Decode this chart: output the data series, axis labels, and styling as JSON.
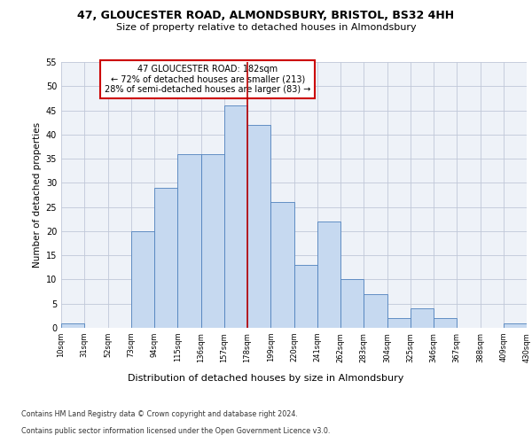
{
  "title1": "47, GLOUCESTER ROAD, ALMONDSBURY, BRISTOL, BS32 4HH",
  "title2": "Size of property relative to detached houses in Almondsbury",
  "xlabel": "Distribution of detached houses by size in Almondsbury",
  "ylabel": "Number of detached properties",
  "bar_edges": [
    10,
    31,
    52,
    73,
    94,
    115,
    136,
    157,
    178,
    199,
    220,
    241,
    262,
    283,
    304,
    325,
    346,
    367,
    388,
    409,
    430
  ],
  "bar_heights": [
    1,
    0,
    0,
    20,
    29,
    36,
    36,
    46,
    42,
    26,
    13,
    22,
    10,
    7,
    2,
    4,
    2,
    0,
    0,
    1
  ],
  "bar_color": "#c6d9f0",
  "bar_edge_color": "#4f81bd",
  "property_line_x": 178,
  "annotation_text": "47 GLOUCESTER ROAD: 182sqm\n← 72% of detached houses are smaller (213)\n28% of semi-detached houses are larger (83) →",
  "annotation_box_color": "#ffffff",
  "annotation_box_edge": "#cc0000",
  "grid_color": "#c0c8d8",
  "background_color": "#eef2f8",
  "ylim": [
    0,
    55
  ],
  "yticks": [
    0,
    5,
    10,
    15,
    20,
    25,
    30,
    35,
    40,
    45,
    50,
    55
  ],
  "footnote1": "Contains HM Land Registry data © Crown copyright and database right 2024.",
  "footnote2": "Contains public sector information licensed under the Open Government Licence v3.0.",
  "tick_labels": [
    "10sqm",
    "31sqm",
    "52sqm",
    "73sqm",
    "94sqm",
    "115sqm",
    "136sqm",
    "157sqm",
    "178sqm",
    "199sqm",
    "220sqm",
    "241sqm",
    "262sqm",
    "283sqm",
    "304sqm",
    "325sqm",
    "346sqm",
    "367sqm",
    "388sqm",
    "409sqm",
    "430sqm"
  ]
}
